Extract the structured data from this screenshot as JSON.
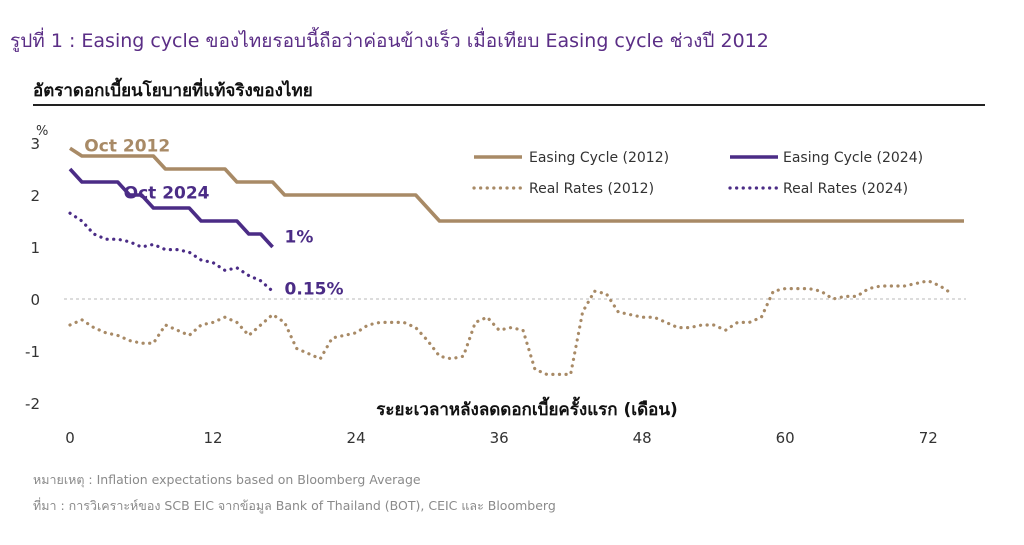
{
  "figure": {
    "title": "รูปที่ 1 : Easing cycle ของไทยรอบนี้ถือว่าค่อนข้างเร็ว เมื่อเทียบ Easing cycle ช่วงปี 2012",
    "subtitle": "อัตราดอกเบี้ยนโยบายที่แท้จริงของไทย",
    "note": "หมายเหตุ : Inflation expectations based on Bloomberg Average",
    "source": "ที่มา : การวิเคราะห์ของ SCB EIC จากข้อมูล Bank of Thailand (BOT), CEIC และ Bloomberg"
  },
  "chart_data": {
    "type": "line",
    "title": "",
    "xlabel": "ระยะเวลาหลังลดดอกเบี้ยครั้งแรก (เดือน)",
    "ylabel": "%",
    "xlim": [
      0,
      75
    ],
    "ylim": [
      -2,
      3
    ],
    "x_ticks": [
      0,
      12,
      24,
      36,
      48,
      60,
      72
    ],
    "y_ticks": [
      -2,
      -1,
      0,
      1,
      2,
      3
    ],
    "grid": false,
    "legend_position": "top-right",
    "series": [
      {
        "name": "Easing Cycle (2012)",
        "color": "#a88a66",
        "style": "solid",
        "x": [
          0,
          1,
          7,
          8,
          13,
          14,
          17,
          18,
          29,
          31,
          75
        ],
        "y": [
          2.9,
          2.75,
          2.75,
          2.5,
          2.5,
          2.25,
          2.25,
          2.0,
          2.0,
          1.5,
          1.5
        ]
      },
      {
        "name": "Easing Cycle (2024)",
        "color": "#4b2c86",
        "style": "solid",
        "x": [
          0,
          1,
          4,
          5,
          6,
          7,
          10,
          11,
          14,
          15,
          16,
          17
        ],
        "y": [
          2.5,
          2.25,
          2.25,
          2.0,
          2.0,
          1.75,
          1.75,
          1.5,
          1.5,
          1.25,
          1.25,
          1.0
        ]
      },
      {
        "name": "Real Rates (2012)",
        "color": "#a88a66",
        "style": "dotted",
        "x": [
          0,
          1,
          2,
          3,
          4,
          5,
          6,
          7,
          8,
          9,
          10,
          11,
          12,
          13,
          14,
          15,
          16,
          17,
          18,
          19,
          20,
          21,
          22,
          23,
          24,
          25,
          26,
          27,
          28,
          29,
          30,
          31,
          32,
          33,
          34,
          35,
          36,
          37,
          38,
          39,
          40,
          41,
          42,
          43,
          44,
          45,
          46,
          47,
          48,
          49,
          50,
          51,
          52,
          53,
          54,
          55,
          56,
          57,
          58,
          59,
          60,
          61,
          62,
          63,
          64,
          65,
          66,
          67,
          68,
          69,
          70,
          71,
          72,
          73,
          74
        ],
        "y": [
          -0.5,
          -0.4,
          -0.55,
          -0.65,
          -0.7,
          -0.8,
          -0.85,
          -0.85,
          -0.5,
          -0.6,
          -0.7,
          -0.5,
          -0.45,
          -0.35,
          -0.45,
          -0.7,
          -0.5,
          -0.3,
          -0.45,
          -0.95,
          -1.05,
          -1.15,
          -0.75,
          -0.7,
          -0.65,
          -0.5,
          -0.45,
          -0.45,
          -0.45,
          -0.55,
          -0.8,
          -1.1,
          -1.15,
          -1.1,
          -0.45,
          -0.35,
          -0.6,
          -0.55,
          -0.6,
          -1.35,
          -1.45,
          -1.45,
          -1.45,
          -0.25,
          0.15,
          0.1,
          -0.25,
          -0.3,
          -0.35,
          -0.35,
          -0.45,
          -0.55,
          -0.55,
          -0.5,
          -0.5,
          -0.6,
          -0.45,
          -0.45,
          -0.35,
          0.15,
          0.2,
          0.2,
          0.2,
          0.15,
          0.0,
          0.05,
          0.05,
          0.2,
          0.25,
          0.25,
          0.25,
          0.3,
          0.35,
          0.25,
          0.1
        ]
      },
      {
        "name": "Real Rates (2024)",
        "color": "#4b2c86",
        "style": "dotted",
        "x": [
          0,
          1,
          2,
          3,
          4,
          5,
          6,
          7,
          8,
          9,
          10,
          11,
          12,
          13,
          14,
          15,
          16,
          17
        ],
        "y": [
          1.65,
          1.5,
          1.25,
          1.15,
          1.15,
          1.1,
          1.0,
          1.05,
          0.95,
          0.95,
          0.9,
          0.75,
          0.7,
          0.55,
          0.6,
          0.45,
          0.35,
          0.15
        ]
      }
    ],
    "annotations": [
      {
        "text": "Oct 2012",
        "color": "#a88a66",
        "x": 1.2,
        "y": 2.95
      },
      {
        "text": "Oct 2024",
        "color": "#4b2c86",
        "x": 4.5,
        "y": 2.05
      },
      {
        "text": "1%",
        "color": "#4b2c86",
        "x": 18,
        "y": 1.2
      },
      {
        "text": "0.15%",
        "color": "#4b2c86",
        "x": 18,
        "y": 0.2
      }
    ]
  }
}
